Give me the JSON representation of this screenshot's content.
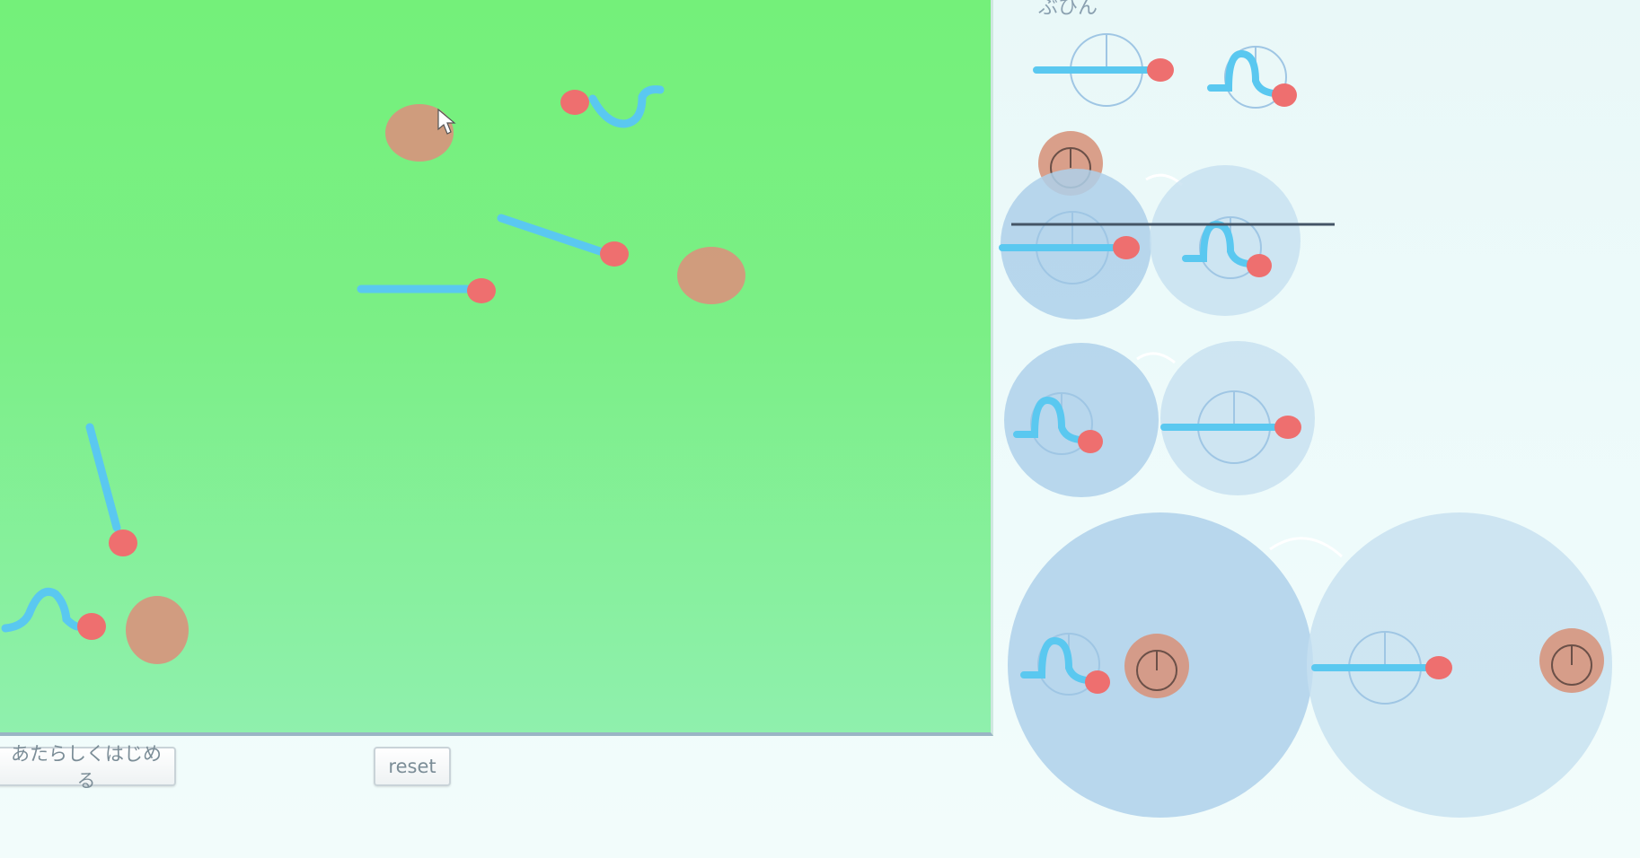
{
  "controls": {
    "start_label": "あたらしくはじめる",
    "reset_label": "reset"
  },
  "legend": {
    "title": "ぶひん"
  },
  "colors": {
    "background_green": "#74f07a",
    "tail_blue": "#5ac8f0",
    "head_red": "#ee6f6f",
    "blob_brown": "#d7957d",
    "cell_blue": "#aed0ea"
  }
}
